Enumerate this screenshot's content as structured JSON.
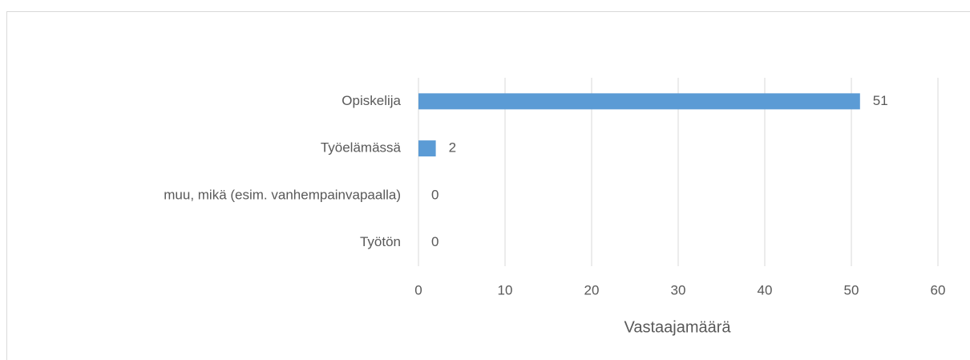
{
  "chart_data": {
    "type": "barh",
    "categories": [
      "Opiskelija",
      "Työelämässä",
      "muu, mikä (esim. vanhempainvapaalla)",
      "Työtön"
    ],
    "values": [
      51,
      2,
      0,
      0
    ],
    "color": "#5b9bd5",
    "xlabel": "Vastaajamäärä",
    "xlim": [
      0,
      60
    ],
    "xticks": [
      0,
      10,
      20,
      30,
      40,
      50,
      60
    ],
    "grid": true
  }
}
